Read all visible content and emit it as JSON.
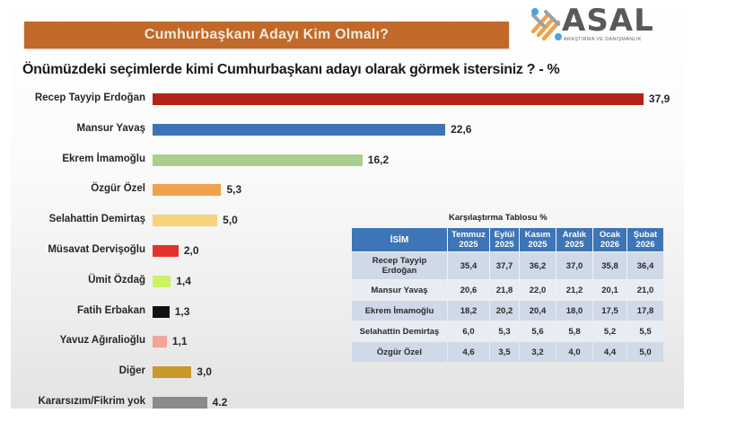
{
  "banner": {
    "title": "Cumhurbaşkanı Adayı Kim Olmalı?"
  },
  "logo": {
    "name": "ASAL",
    "subtitle": "ARAŞTIRMA VE DANIŞMANLIK",
    "icon": "asal-logo-icon",
    "colors": [
      "#4BA3E3",
      "#F0A24A",
      "#58595b"
    ]
  },
  "question": "Önümüzdeki seçimlerde kimi Cumhurbaşkanı adayı olarak görmek istersiniz ? - %",
  "chart_data": [
    {
      "type": "bar",
      "orientation": "horizontal",
      "title": "Önümüzdeki seçimlerde kimi Cumhurbaşkanı adayı olarak görmek istersiniz ? - %",
      "categories": [
        "Recep Tayyip Erdoğan",
        "Mansur Yavaş",
        "Ekrem İmamoğlu",
        "Özgür Özel",
        "Selahattin Demirtaş",
        "Müsavat Dervişoğlu",
        "Ümit Özdağ",
        "Fatih Erbakan",
        "Yavuz Ağıralioğlu",
        "Diğer",
        "Kararsızım/Fikrim yok"
      ],
      "values": [
        37.9,
        22.6,
        16.2,
        5.3,
        5.0,
        2.0,
        1.4,
        1.3,
        1.1,
        3.0,
        4.2
      ],
      "value_labels": [
        "37,9",
        "22,6",
        "16,2",
        "5,3",
        "5,0",
        "2,0",
        "1,4",
        "1,3",
        "1,1",
        "3,0",
        "4.2"
      ],
      "colors": [
        "#B22218",
        "#3E74B5",
        "#A9CE8E",
        "#F0A24A",
        "#F7D47A",
        "#E2322A",
        "#CCF266",
        "#111111",
        "#F2A598",
        "#C7982A",
        "#8A8A8A"
      ],
      "xlabel": "",
      "ylabel": "",
      "grid": false,
      "legend": "none"
    },
    {
      "type": "table",
      "title": "Karşılaştırma Tablosu %",
      "columns": [
        "İSİM",
        "Temmuz 2025",
        "Eylül 2025",
        "Kasım 2025",
        "Aralık 2025",
        "Ocak 2026",
        "Şubat 2026"
      ],
      "rows": [
        {
          "name": "Recep Tayyip Erdoğan",
          "values": [
            "35,4",
            "37,7",
            "36,2",
            "37,0",
            "35,8",
            "36,4"
          ]
        },
        {
          "name": "Mansur Yavaş",
          "values": [
            "20,6",
            "21,8",
            "22,0",
            "21,2",
            "20,1",
            "21,0"
          ]
        },
        {
          "name": "Ekrem İmamoğlu",
          "values": [
            "18,2",
            "20,2",
            "20,4",
            "18,0",
            "17,5",
            "17,8"
          ]
        },
        {
          "name": "Selahattin Demirtaş",
          "values": [
            "6,0",
            "5,3",
            "5,6",
            "5,8",
            "5,2",
            "5,5"
          ]
        },
        {
          "name": "Özgür Özel",
          "values": [
            "4,6",
            "3,5",
            "3,2",
            "4,0",
            "4,4",
            "5,0"
          ]
        }
      ]
    }
  ],
  "table": {
    "title": "Karşılaştırma Tablosu %",
    "header": {
      "name": "İSİM",
      "cols": [
        {
          "month": "Temmuz",
          "year": "2025"
        },
        {
          "month": "Eylül",
          "year": "2025"
        },
        {
          "month": "Kasım",
          "year": "2025"
        },
        {
          "month": "Aralık",
          "year": "2025"
        },
        {
          "month": "Ocak",
          "year": "2026"
        },
        {
          "month": "Şubat",
          "year": "2026"
        }
      ]
    },
    "rows": [
      {
        "name1": "Recep Tayyip",
        "name2": "Erdoğan",
        "v": [
          "35,4",
          "37,7",
          "36,2",
          "37,0",
          "35,8",
          "36,4"
        ]
      },
      {
        "name1": "Mansur Yavaş",
        "name2": "",
        "v": [
          "20,6",
          "21,8",
          "22,0",
          "21,2",
          "20,1",
          "21,0"
        ]
      },
      {
        "name1": "Ekrem İmamoğlu",
        "name2": "",
        "v": [
          "18,2",
          "20,2",
          "20,4",
          "18,0",
          "17,5",
          "17,8"
        ]
      },
      {
        "name1": "Selahattin Demirtaş",
        "name2": "",
        "v": [
          "6,0",
          "5,3",
          "5,6",
          "5,8",
          "5,2",
          "5,5"
        ]
      },
      {
        "name1": "Özgür Özel",
        "name2": "",
        "v": [
          "4,6",
          "3,5",
          "3,2",
          "4,0",
          "4,4",
          "5,0"
        ]
      }
    ]
  }
}
